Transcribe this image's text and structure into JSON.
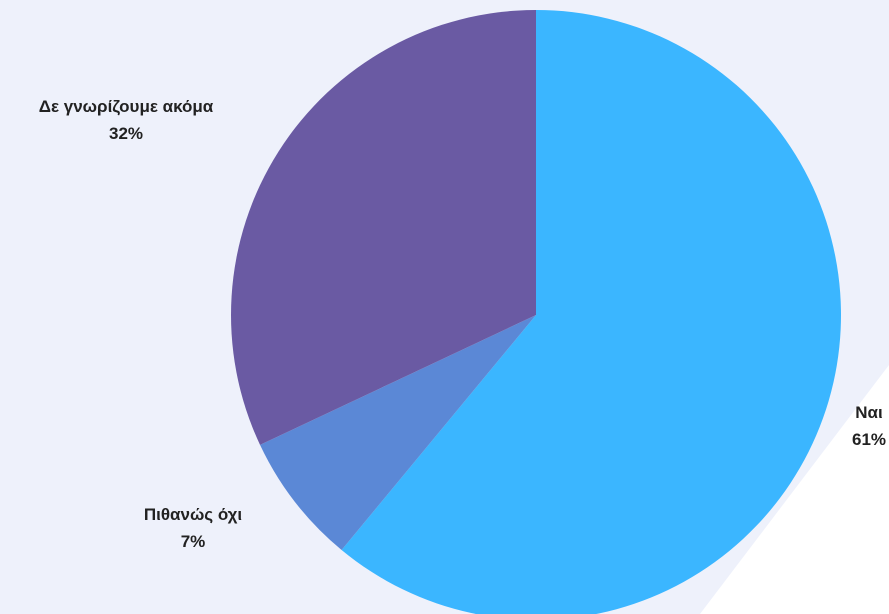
{
  "background_color": "#eef1fb",
  "chart_data": {
    "type": "pie",
    "title": "",
    "start_angle_deg": 0,
    "direction": "clockwise",
    "labels": [
      "Ναι",
      "Πιθανώς όχι",
      "Δε γνωρίζουμε ακόμα"
    ],
    "values": [
      61,
      7,
      32
    ],
    "value_labels": [
      "61%",
      "7%",
      "32%"
    ],
    "colors": [
      "#3bb6ff",
      "#5b88d6",
      "#6a5aa3"
    ],
    "legend": "none",
    "data_labels": "outside"
  }
}
